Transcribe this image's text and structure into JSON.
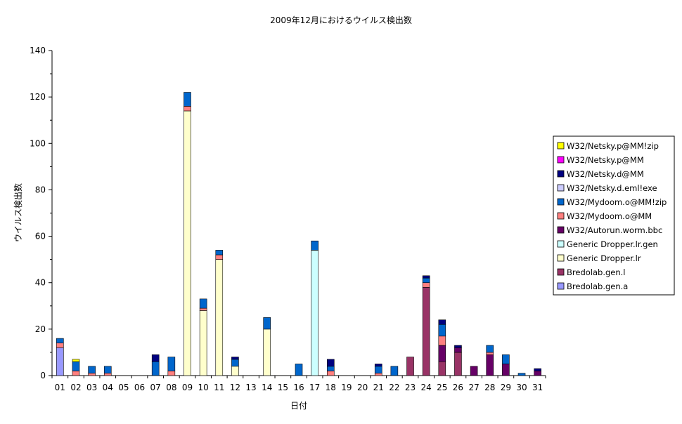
{
  "chart_data": {
    "type": "bar",
    "stacked": true,
    "title": "2009年12月におけるウイルス検出数",
    "xlabel": "日付",
    "ylabel": "ウイルス検出数",
    "ylim": [
      0,
      140
    ],
    "yticks": [
      0,
      20,
      40,
      60,
      80,
      100,
      120,
      140
    ],
    "grid": false,
    "legend_position": "right",
    "categories": [
      "01",
      "02",
      "03",
      "04",
      "05",
      "06",
      "07",
      "08",
      "09",
      "10",
      "11",
      "12",
      "13",
      "14",
      "15",
      "16",
      "17",
      "18",
      "19",
      "20",
      "21",
      "22",
      "23",
      "24",
      "25",
      "26",
      "27",
      "28",
      "29",
      "30",
      "31"
    ],
    "series": [
      {
        "name": "Bredolab.gen.a",
        "color": "#9999FF",
        "values": [
          12,
          0,
          0,
          0,
          0,
          0,
          0,
          0,
          0,
          0,
          0,
          0,
          0,
          0,
          0,
          0,
          0,
          0,
          0,
          0,
          0,
          0,
          0,
          0,
          0,
          0,
          0,
          0,
          0,
          0,
          0
        ]
      },
      {
        "name": "Bredolab.gen.l",
        "color": "#993366",
        "values": [
          0,
          0,
          0,
          0,
          0,
          0,
          0,
          0,
          0,
          0,
          0,
          0,
          0,
          0,
          0,
          0,
          0,
          0,
          0,
          0,
          0,
          0,
          8,
          38,
          6,
          10,
          0,
          0,
          0,
          0,
          0
        ]
      },
      {
        "name": "Generic Dropper.lr",
        "color": "#FFFFCC",
        "values": [
          0,
          0,
          0,
          0,
          0,
          0,
          0,
          0,
          114,
          28,
          50,
          4,
          0,
          20,
          0,
          0,
          0,
          0,
          0,
          0,
          0,
          0,
          0,
          0,
          0,
          0,
          0,
          0,
          0,
          0,
          0
        ]
      },
      {
        "name": "Generic Dropper.lr.gen",
        "color": "#CCFFFF",
        "values": [
          0,
          0,
          0,
          0,
          0,
          0,
          0,
          0,
          0,
          0,
          0,
          0,
          0,
          0,
          0,
          0,
          54,
          0,
          0,
          0,
          0,
          0,
          0,
          0,
          0,
          0,
          0,
          0,
          0,
          0,
          0
        ]
      },
      {
        "name": "W32/Autorun.worm.bbc",
        "color": "#660066",
        "values": [
          0,
          0,
          0,
          0,
          0,
          0,
          0,
          0,
          0,
          0,
          0,
          0,
          0,
          0,
          0,
          0,
          0,
          0,
          0,
          0,
          0,
          0,
          0,
          0,
          7,
          2,
          4,
          9,
          5,
          0,
          2
        ]
      },
      {
        "name": "W32/Mydoom.o@MM",
        "color": "#FF8080",
        "values": [
          2,
          2,
          1,
          1,
          0,
          0,
          0,
          2,
          2,
          1,
          2,
          0,
          0,
          0,
          0,
          0,
          0,
          2,
          0,
          0,
          1,
          0,
          0,
          2,
          4,
          0,
          0,
          1,
          0,
          0,
          0
        ]
      },
      {
        "name": "W32/Mydoom.o@MM!zip",
        "color": "#0066CC",
        "values": [
          2,
          4,
          3,
          3,
          0,
          0,
          6,
          6,
          6,
          4,
          2,
          3,
          0,
          5,
          0,
          5,
          4,
          2,
          0,
          0,
          3,
          4,
          0,
          2,
          5,
          0,
          0,
          3,
          4,
          1,
          0
        ]
      },
      {
        "name": "W32/Netsky.d.eml!exe",
        "color": "#CCCCFF",
        "values": [
          0,
          0,
          0,
          0,
          0,
          0,
          0,
          0,
          0,
          0,
          0,
          0,
          0,
          0,
          0,
          0,
          0,
          0,
          0,
          0,
          0,
          0,
          0,
          0,
          0,
          0,
          0,
          0,
          0,
          0,
          0
        ]
      },
      {
        "name": "W32/Netsky.d@MM",
        "color": "#000080",
        "values": [
          0,
          0,
          0,
          0,
          0,
          0,
          3,
          0,
          0,
          0,
          0,
          1,
          0,
          0,
          0,
          0,
          0,
          3,
          0,
          0,
          1,
          0,
          0,
          1,
          2,
          1,
          0,
          0,
          0,
          0,
          1
        ]
      },
      {
        "name": "W32/Netsky.p@MM",
        "color": "#FF00FF",
        "values": [
          0,
          0,
          0,
          0,
          0,
          0,
          0,
          0,
          0,
          0,
          0,
          0,
          0,
          0,
          0,
          0,
          0,
          0,
          0,
          0,
          0,
          0,
          0,
          0,
          0,
          0,
          0,
          0,
          0,
          0,
          0
        ]
      },
      {
        "name": "W32/Netsky.p@MM!zip",
        "color": "#FFFF00",
        "values": [
          0,
          1,
          0,
          0,
          0,
          0,
          0,
          0,
          0,
          0,
          0,
          0,
          0,
          0,
          0,
          0,
          0,
          0,
          0,
          0,
          0,
          0,
          0,
          0,
          0,
          0,
          0,
          0,
          0,
          0,
          0
        ]
      }
    ],
    "legend_order": [
      "W32/Netsky.p@MM!zip",
      "W32/Netsky.p@MM",
      "W32/Netsky.d@MM",
      "W32/Netsky.d.eml!exe",
      "W32/Mydoom.o@MM!zip",
      "W32/Mydoom.o@MM",
      "W32/Autorun.worm.bbc",
      "Generic Dropper.lr.gen",
      "Generic Dropper.lr",
      "Bredolab.gen.l",
      "Bredolab.gen.a"
    ]
  }
}
